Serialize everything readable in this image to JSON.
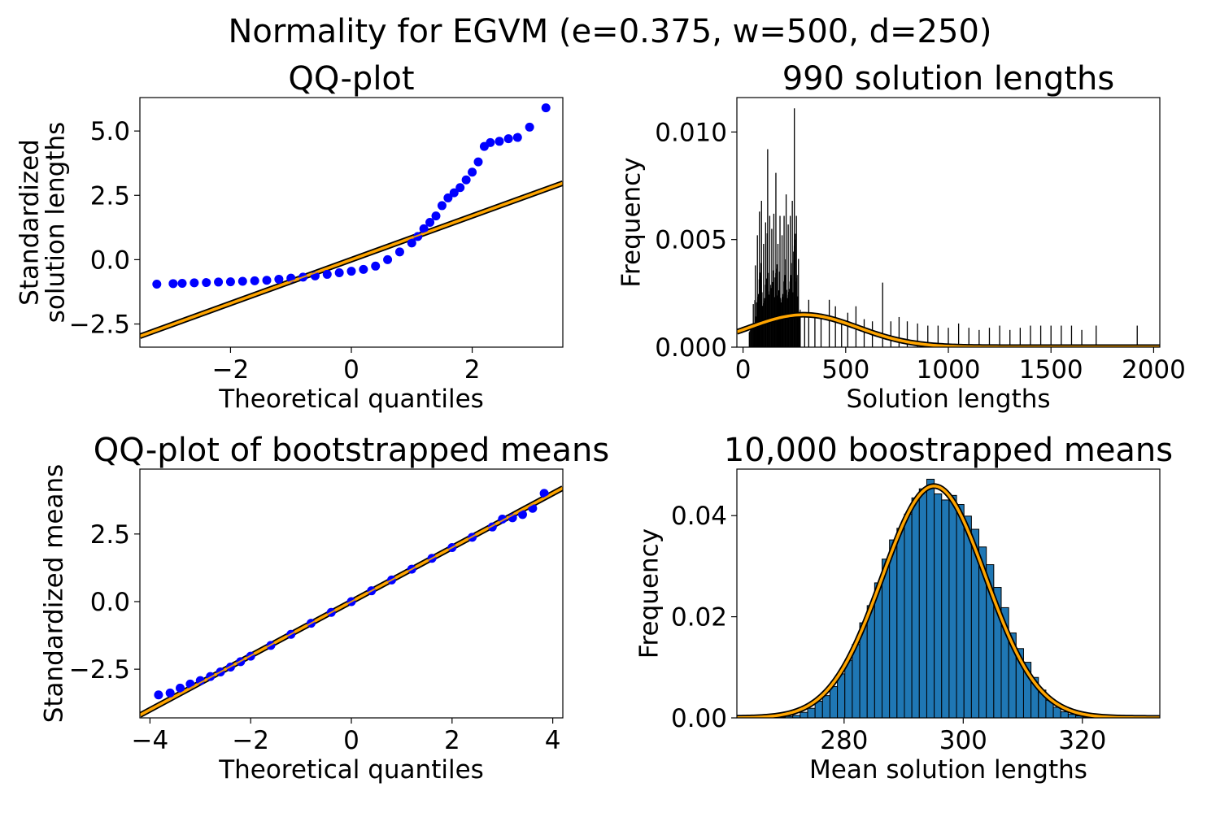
{
  "figure": {
    "suptitle": "Normality for EGVM (e=0.375, w=500, d=250)"
  },
  "chart_data": [
    {
      "type": "scatter",
      "title": "QQ-plot",
      "xlabel": "Theoretical quantiles",
      "ylabel": [
        "Standardized",
        "solution lengths"
      ],
      "xlim": [
        -3.5,
        3.5
      ],
      "ylim": [
        -3.4,
        6.3
      ],
      "xticks": [
        -2,
        0,
        2
      ],
      "xtick_labels": [
        "−2",
        "0",
        "2"
      ],
      "yticks": [
        -2.5,
        0.0,
        2.5,
        5.0
      ],
      "ytick_labels": [
        "−2.5",
        "0.0",
        "2.5",
        "5.0"
      ],
      "point_color": "#0000ff",
      "line_color": "#ffa500",
      "points": [
        [
          -3.22,
          -0.95
        ],
        [
          -2.95,
          -0.93
        ],
        [
          -2.8,
          -0.92
        ],
        [
          -2.6,
          -0.9
        ],
        [
          -2.4,
          -0.89
        ],
        [
          -2.2,
          -0.87
        ],
        [
          -2.0,
          -0.86
        ],
        [
          -1.8,
          -0.84
        ],
        [
          -1.6,
          -0.82
        ],
        [
          -1.4,
          -0.8
        ],
        [
          -1.2,
          -0.76
        ],
        [
          -1.0,
          -0.72
        ],
        [
          -0.8,
          -0.68
        ],
        [
          -0.6,
          -0.63
        ],
        [
          -0.4,
          -0.57
        ],
        [
          -0.2,
          -0.51
        ],
        [
          0.0,
          -0.45
        ],
        [
          0.2,
          -0.38
        ],
        [
          0.4,
          -0.25
        ],
        [
          0.6,
          0.0
        ],
        [
          0.8,
          0.3
        ],
        [
          1.0,
          0.65
        ],
        [
          1.1,
          0.9
        ],
        [
          1.2,
          1.2
        ],
        [
          1.3,
          1.45
        ],
        [
          1.4,
          1.7
        ],
        [
          1.5,
          2.1
        ],
        [
          1.6,
          2.4
        ],
        [
          1.7,
          2.6
        ],
        [
          1.8,
          2.8
        ],
        [
          1.9,
          3.1
        ],
        [
          2.0,
          3.4
        ],
        [
          2.1,
          3.8
        ],
        [
          2.2,
          4.4
        ],
        [
          2.3,
          4.55
        ],
        [
          2.45,
          4.6
        ],
        [
          2.6,
          4.7
        ],
        [
          2.75,
          4.75
        ],
        [
          2.95,
          5.15
        ],
        [
          3.22,
          5.9
        ]
      ],
      "fit_line": {
        "slope": 0.85,
        "intercept": 0.0
      }
    },
    {
      "type": "bar",
      "title": "990 solution lengths",
      "xlabel": "Solution lengths",
      "ylabel": "Frequency",
      "xlim": [
        -30,
        2030
      ],
      "ylim": [
        0,
        0.0116
      ],
      "xticks": [
        0,
        500,
        1000,
        1500,
        2000
      ],
      "xtick_labels": [
        "0",
        "500",
        "1000",
        "1500",
        "2000"
      ],
      "yticks": [
        0.0,
        0.005,
        0.01
      ],
      "ytick_labels": [
        "0.000",
        "0.005",
        "0.010"
      ],
      "line_color": "#ffa500",
      "normal_fit": {
        "mean": 295,
        "sd": 265
      },
      "spikes": [
        [
          50,
          0.002
        ],
        [
          60,
          0.0038
        ],
        [
          70,
          0.0052
        ],
        [
          80,
          0.0063
        ],
        [
          90,
          0.0068
        ],
        [
          100,
          0.0048
        ],
        [
          110,
          0.0058
        ],
        [
          120,
          0.0092
        ],
        [
          130,
          0.0061
        ],
        [
          140,
          0.0055
        ],
        [
          150,
          0.0062
        ],
        [
          160,
          0.0081
        ],
        [
          170,
          0.0048
        ],
        [
          180,
          0.0061
        ],
        [
          190,
          0.0052
        ],
        [
          200,
          0.0061
        ],
        [
          210,
          0.0071
        ],
        [
          220,
          0.0057
        ],
        [
          230,
          0.0061
        ],
        [
          240,
          0.0068
        ],
        [
          250,
          0.0111
        ],
        [
          260,
          0.0061
        ],
        [
          270,
          0.0041
        ],
        [
          300,
          0.0015
        ],
        [
          320,
          0.0022
        ],
        [
          350,
          0.0016
        ],
        [
          380,
          0.0013
        ],
        [
          420,
          0.0022
        ],
        [
          450,
          0.0019
        ],
        [
          480,
          0.0013
        ],
        [
          510,
          0.0016
        ],
        [
          550,
          0.0019
        ],
        [
          590,
          0.0013
        ],
        [
          630,
          0.0012
        ],
        [
          680,
          0.003
        ],
        [
          720,
          0.0012
        ],
        [
          760,
          0.0014
        ],
        [
          800,
          0.0012
        ],
        [
          850,
          0.0011
        ],
        [
          900,
          0.001
        ],
        [
          950,
          0.001
        ],
        [
          1000,
          0.0009
        ],
        [
          1050,
          0.0011
        ],
        [
          1100,
          0.0009
        ],
        [
          1150,
          0.0008
        ],
        [
          1200,
          0.0009
        ],
        [
          1250,
          0.001
        ],
        [
          1300,
          0.0008
        ],
        [
          1350,
          0.0009
        ],
        [
          1400,
          0.001
        ],
        [
          1450,
          0.001
        ],
        [
          1500,
          0.001
        ],
        [
          1550,
          0.001
        ],
        [
          1600,
          0.001
        ],
        [
          1650,
          0.0008
        ],
        [
          1720,
          0.001
        ],
        [
          1920,
          0.001
        ]
      ]
    },
    {
      "type": "scatter",
      "title": "QQ-plot of bootstrapped means",
      "xlabel": "Theoretical quantiles",
      "ylabel": "Standardized means",
      "xlim": [
        -4.2,
        4.2
      ],
      "ylim": [
        -4.3,
        4.9
      ],
      "xticks": [
        -4,
        -2,
        0,
        2,
        4
      ],
      "xtick_labels": [
        "−4",
        "−2",
        "0",
        "2",
        "4"
      ],
      "yticks": [
        -2.5,
        0.0,
        2.5
      ],
      "ytick_labels": [
        "−2.5",
        "0.0",
        "2.5"
      ],
      "point_color": "#0000ff",
      "line_color": "#ffa500",
      "points": [
        [
          -3.83,
          -3.45
        ],
        [
          -3.6,
          -3.38
        ],
        [
          -3.4,
          -3.2
        ],
        [
          -3.2,
          -3.05
        ],
        [
          -3.0,
          -2.92
        ],
        [
          -2.8,
          -2.77
        ],
        [
          -2.6,
          -2.6
        ],
        [
          -2.4,
          -2.42
        ],
        [
          -2.2,
          -2.22
        ],
        [
          -2.0,
          -2.02
        ],
        [
          -1.6,
          -1.62
        ],
        [
          -1.2,
          -1.21
        ],
        [
          -0.8,
          -0.8
        ],
        [
          -0.4,
          -0.4
        ],
        [
          0.0,
          0.0
        ],
        [
          0.4,
          0.4
        ],
        [
          0.8,
          0.8
        ],
        [
          1.2,
          1.2
        ],
        [
          1.6,
          1.6
        ],
        [
          2.0,
          2.0
        ],
        [
          2.4,
          2.38
        ],
        [
          2.8,
          2.76
        ],
        [
          3.0,
          3.05
        ],
        [
          3.2,
          3.1
        ],
        [
          3.4,
          3.22
        ],
        [
          3.6,
          3.45
        ],
        [
          3.83,
          4.0
        ]
      ],
      "fit_line": {
        "slope": 1.0,
        "intercept": 0.0
      }
    },
    {
      "type": "bar",
      "title": "10,000 boostrapped means",
      "xlabel": "Mean solution lengths",
      "ylabel": "Frequency",
      "xlim": [
        262,
        333
      ],
      "ylim": [
        0,
        0.0492
      ],
      "xticks": [
        280,
        300,
        320
      ],
      "xtick_labels": [
        "280",
        "300",
        "320"
      ],
      "yticks": [
        0.0,
        0.02,
        0.04
      ],
      "ytick_labels": [
        "0.00",
        "0.02",
        "0.04"
      ],
      "bar_color": "#1f77b4",
      "line_color": "#ffa500",
      "normal_fit": {
        "mean": 295.1,
        "sd": 8.7
      },
      "bins": [
        [
          269.5,
          0.0001
        ],
        [
          270.75,
          0.0003
        ],
        [
          272.0,
          0.0005
        ],
        [
          273.25,
          0.0011
        ],
        [
          274.5,
          0.0019
        ],
        [
          275.75,
          0.0033
        ],
        [
          277.0,
          0.0044
        ],
        [
          278.25,
          0.0062
        ],
        [
          279.5,
          0.0087
        ],
        [
          280.75,
          0.0114
        ],
        [
          282.0,
          0.0145
        ],
        [
          283.25,
          0.0188
        ],
        [
          284.5,
          0.0222
        ],
        [
          285.75,
          0.0267
        ],
        [
          287.0,
          0.0314
        ],
        [
          288.25,
          0.0352
        ],
        [
          289.5,
          0.0375
        ],
        [
          290.75,
          0.0403
        ],
        [
          292.0,
          0.0435
        ],
        [
          293.25,
          0.0453
        ],
        [
          294.5,
          0.0472
        ],
        [
          295.75,
          0.0443
        ],
        [
          297.0,
          0.0431
        ],
        [
          298.25,
          0.044
        ],
        [
          299.5,
          0.0422
        ],
        [
          300.75,
          0.0399
        ],
        [
          302.0,
          0.0373
        ],
        [
          303.25,
          0.0338
        ],
        [
          304.5,
          0.0303
        ],
        [
          305.75,
          0.0258
        ],
        [
          307.0,
          0.0218
        ],
        [
          308.25,
          0.0168
        ],
        [
          309.5,
          0.0137
        ],
        [
          310.75,
          0.011
        ],
        [
          312.0,
          0.008
        ],
        [
          313.25,
          0.0055
        ],
        [
          314.5,
          0.0035
        ],
        [
          315.75,
          0.0021
        ],
        [
          317.0,
          0.0012
        ],
        [
          318.25,
          0.0007
        ],
        [
          319.5,
          0.0004
        ],
        [
          320.75,
          0.0002
        ],
        [
          322.0,
          0.0001
        ]
      ]
    }
  ]
}
